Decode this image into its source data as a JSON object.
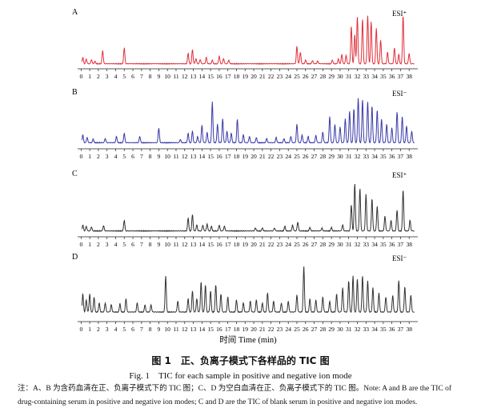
{
  "figure": {
    "caption_cn": "图 1　正、负离子模式下各样品的 TIC 图",
    "caption_en": "Fig. 1　TIC for each sample in positive and negative ion mode",
    "note": "注：A、B 为含药血清在正、负离子模式下的 TIC 图；C、D 为空白血清在正、负离子模式下的 TIC 图。Note: A and B are the TIC of drug-containing serum in positive and negative ion modes; C and D are the TIC of blank serum in positive and negative ion modes.",
    "axis_label": "时间 Time (min)"
  },
  "colors": {
    "A": "#e0303a",
    "B": "#3a3aa8",
    "C": "#333333",
    "D": "#333333"
  },
  "chart_data": [
    {
      "type": "line",
      "panel": "A",
      "mode_label": "ESI⁺",
      "x_ticks": [
        0,
        1,
        2,
        3,
        4,
        5,
        6,
        7,
        8,
        9,
        10,
        11,
        12,
        13,
        14,
        15,
        16,
        17,
        18,
        19,
        20,
        21,
        22,
        23,
        24,
        25,
        26,
        27,
        28,
        29,
        30,
        31,
        32,
        33,
        34,
        35,
        36,
        37,
        38
      ],
      "xlim": [
        -0.4,
        39
      ],
      "baseline": 0.03,
      "peaks": [
        [
          0.2,
          0.12
        ],
        [
          0.6,
          0.09
        ],
        [
          1.2,
          0.08
        ],
        [
          1.6,
          0.05
        ],
        [
          2.5,
          0.25
        ],
        [
          5.0,
          0.3
        ],
        [
          12.4,
          0.2
        ],
        [
          12.9,
          0.27
        ],
        [
          13.3,
          0.1
        ],
        [
          13.8,
          0.08
        ],
        [
          14.5,
          0.12
        ],
        [
          15.2,
          0.07
        ],
        [
          16.0,
          0.15
        ],
        [
          16.5,
          0.1
        ],
        [
          17.1,
          0.07
        ],
        [
          25.0,
          0.33
        ],
        [
          25.4,
          0.22
        ],
        [
          26.0,
          0.07
        ],
        [
          26.8,
          0.06
        ],
        [
          27.4,
          0.05
        ],
        [
          29.1,
          0.07
        ],
        [
          29.8,
          0.09
        ],
        [
          30.2,
          0.18
        ],
        [
          30.7,
          0.16
        ],
        [
          31.3,
          0.72
        ],
        [
          31.7,
          0.55
        ],
        [
          32.0,
          0.9
        ],
        [
          32.6,
          0.85
        ],
        [
          33.2,
          0.92
        ],
        [
          33.6,
          0.8
        ],
        [
          34.2,
          0.68
        ],
        [
          34.7,
          0.45
        ],
        [
          35.5,
          0.22
        ],
        [
          36.3,
          0.3
        ],
        [
          36.8,
          0.18
        ],
        [
          37.3,
          0.92
        ],
        [
          38.0,
          0.2
        ]
      ]
    },
    {
      "type": "line",
      "panel": "B",
      "mode_label": "ESI⁻",
      "x_ticks": [
        0,
        1,
        2,
        3,
        4,
        5,
        6,
        7,
        8,
        9,
        10,
        11,
        12,
        13,
        14,
        15,
        16,
        17,
        18,
        19,
        20,
        21,
        22,
        23,
        24,
        25,
        26,
        27,
        28,
        29,
        30,
        31,
        32,
        33,
        34,
        35,
        36,
        37,
        38
      ],
      "xlim": [
        -0.4,
        39
      ],
      "baseline": 0.05,
      "peaks": [
        [
          0.2,
          0.15
        ],
        [
          0.7,
          0.1
        ],
        [
          1.4,
          0.07
        ],
        [
          2.8,
          0.08
        ],
        [
          4.1,
          0.12
        ],
        [
          5.0,
          0.18
        ],
        [
          6.8,
          0.12
        ],
        [
          9.0,
          0.28
        ],
        [
          11.5,
          0.06
        ],
        [
          12.4,
          0.18
        ],
        [
          12.9,
          0.22
        ],
        [
          13.5,
          0.12
        ],
        [
          14.0,
          0.33
        ],
        [
          14.6,
          0.2
        ],
        [
          15.2,
          0.78
        ],
        [
          15.8,
          0.35
        ],
        [
          16.4,
          0.45
        ],
        [
          16.9,
          0.22
        ],
        [
          17.4,
          0.18
        ],
        [
          18.1,
          0.45
        ],
        [
          18.8,
          0.15
        ],
        [
          19.5,
          0.12
        ],
        [
          20.3,
          0.1
        ],
        [
          21.5,
          0.08
        ],
        [
          22.6,
          0.1
        ],
        [
          23.5,
          0.08
        ],
        [
          24.3,
          0.12
        ],
        [
          25.0,
          0.35
        ],
        [
          25.6,
          0.15
        ],
        [
          26.3,
          0.12
        ],
        [
          27.2,
          0.14
        ],
        [
          28.0,
          0.2
        ],
        [
          28.8,
          0.5
        ],
        [
          29.4,
          0.35
        ],
        [
          30.0,
          0.3
        ],
        [
          30.6,
          0.45
        ],
        [
          31.1,
          0.6
        ],
        [
          31.6,
          0.65
        ],
        [
          32.1,
          0.85
        ],
        [
          32.6,
          0.82
        ],
        [
          33.2,
          0.78
        ],
        [
          33.7,
          0.7
        ],
        [
          34.3,
          0.62
        ],
        [
          34.8,
          0.45
        ],
        [
          35.4,
          0.35
        ],
        [
          36.0,
          0.28
        ],
        [
          36.6,
          0.58
        ],
        [
          37.2,
          0.5
        ],
        [
          37.7,
          0.32
        ],
        [
          38.3,
          0.22
        ]
      ]
    },
    {
      "type": "line",
      "panel": "C",
      "mode_label": "ESI⁺",
      "x_ticks": [
        0,
        1,
        2,
        3,
        4,
        5,
        6,
        7,
        8,
        9,
        10,
        11,
        12,
        13,
        14,
        15,
        16,
        17,
        18,
        19,
        20,
        21,
        22,
        23,
        24,
        25,
        26,
        27,
        28,
        29,
        30,
        31,
        32,
        33,
        34,
        35,
        36,
        37,
        38
      ],
      "xlim": [
        -0.4,
        39
      ],
      "baseline": 0.04,
      "peaks": [
        [
          0.2,
          0.1
        ],
        [
          0.6,
          0.08
        ],
        [
          1.2,
          0.07
        ],
        [
          2.6,
          0.09
        ],
        [
          5.0,
          0.18
        ],
        [
          12.4,
          0.22
        ],
        [
          12.9,
          0.28
        ],
        [
          13.4,
          0.1
        ],
        [
          14.1,
          0.1
        ],
        [
          14.6,
          0.12
        ],
        [
          15.1,
          0.08
        ],
        [
          16.0,
          0.1
        ],
        [
          16.6,
          0.08
        ],
        [
          20.2,
          0.05
        ],
        [
          21.0,
          0.05
        ],
        [
          22.4,
          0.05
        ],
        [
          23.6,
          0.08
        ],
        [
          24.5,
          0.1
        ],
        [
          25.1,
          0.15
        ],
        [
          26.5,
          0.06
        ],
        [
          27.9,
          0.05
        ],
        [
          29.0,
          0.06
        ],
        [
          30.3,
          0.1
        ],
        [
          31.3,
          0.45
        ],
        [
          31.7,
          0.8
        ],
        [
          32.3,
          0.72
        ],
        [
          33.0,
          0.62
        ],
        [
          33.7,
          0.55
        ],
        [
          34.3,
          0.42
        ],
        [
          35.2,
          0.25
        ],
        [
          35.9,
          0.18
        ],
        [
          36.6,
          0.35
        ],
        [
          37.3,
          0.7
        ],
        [
          38.1,
          0.18
        ]
      ]
    },
    {
      "type": "line",
      "panel": "D",
      "mode_label": "ESI⁻",
      "x_ticks": [
        0,
        1,
        2,
        3,
        4,
        5,
        6,
        7,
        8,
        9,
        10,
        11,
        12,
        13,
        14,
        15,
        16,
        17,
        18,
        19,
        20,
        21,
        22,
        23,
        24,
        25,
        26,
        27,
        28,
        29,
        30,
        31,
        32,
        33,
        34,
        35,
        36,
        37,
        38
      ],
      "xlim": [
        -0.4,
        39
      ],
      "baseline": 0.1,
      "peaks": [
        [
          0.2,
          0.3
        ],
        [
          0.6,
          0.2
        ],
        [
          1.0,
          0.3
        ],
        [
          1.5,
          0.25
        ],
        [
          2.1,
          0.15
        ],
        [
          2.8,
          0.15
        ],
        [
          3.5,
          0.12
        ],
        [
          4.5,
          0.14
        ],
        [
          5.2,
          0.22
        ],
        [
          6.5,
          0.15
        ],
        [
          7.4,
          0.12
        ],
        [
          8.1,
          0.12
        ],
        [
          9.8,
          0.6
        ],
        [
          11.2,
          0.18
        ],
        [
          12.4,
          0.22
        ],
        [
          12.9,
          0.35
        ],
        [
          13.4,
          0.22
        ],
        [
          13.9,
          0.5
        ],
        [
          14.4,
          0.45
        ],
        [
          15.0,
          0.35
        ],
        [
          15.6,
          0.45
        ],
        [
          16.2,
          0.3
        ],
        [
          17.0,
          0.25
        ],
        [
          18.0,
          0.2
        ],
        [
          18.8,
          0.15
        ],
        [
          19.6,
          0.18
        ],
        [
          20.3,
          0.2
        ],
        [
          21.0,
          0.15
        ],
        [
          21.6,
          0.32
        ],
        [
          22.3,
          0.18
        ],
        [
          23.2,
          0.15
        ],
        [
          24.0,
          0.18
        ],
        [
          25.0,
          0.28
        ],
        [
          25.8,
          0.75
        ],
        [
          26.5,
          0.22
        ],
        [
          27.2,
          0.2
        ],
        [
          28.0,
          0.25
        ],
        [
          28.8,
          0.18
        ],
        [
          29.6,
          0.3
        ],
        [
          30.3,
          0.4
        ],
        [
          31.0,
          0.52
        ],
        [
          31.5,
          0.6
        ],
        [
          32.0,
          0.55
        ],
        [
          32.6,
          0.6
        ],
        [
          33.2,
          0.52
        ],
        [
          33.8,
          0.4
        ],
        [
          34.5,
          0.32
        ],
        [
          35.3,
          0.25
        ],
        [
          36.1,
          0.28
        ],
        [
          36.8,
          0.52
        ],
        [
          37.5,
          0.42
        ],
        [
          38.2,
          0.28
        ]
      ]
    }
  ]
}
